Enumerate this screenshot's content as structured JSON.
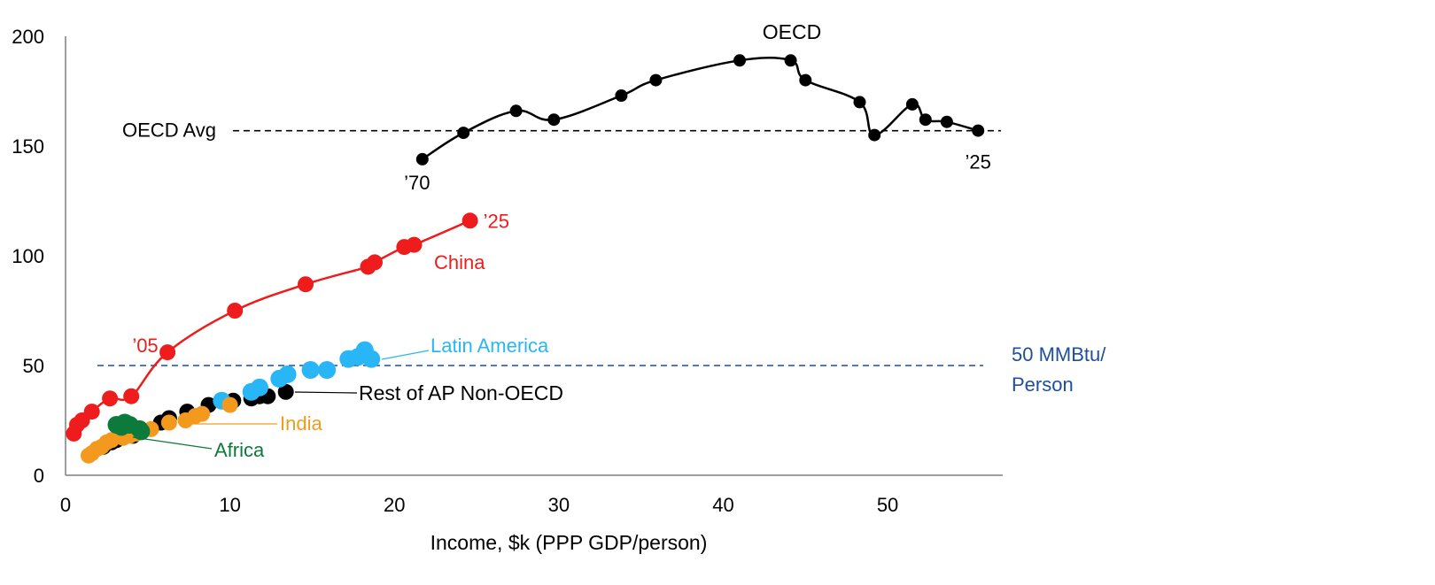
{
  "chart_data": {
    "type": "scatter",
    "title": "",
    "xlabel": "Income, $k (PPP GDP/person)",
    "ylabel": "",
    "xlim": [
      0,
      57
    ],
    "ylim": [
      0,
      200
    ],
    "x_ticks": [
      "0",
      "10",
      "20",
      "30",
      "40",
      "50"
    ],
    "y_ticks": [
      "0",
      "50",
      "100",
      "150",
      "200"
    ],
    "reference_lines": [
      {
        "label": "OECD Avg",
        "y": 157,
        "color": "#000000"
      },
      {
        "label_line1": "50 MMBtu/",
        "label_line2": "Person",
        "y": 50,
        "color": "#1f4e9c"
      }
    ],
    "series": [
      {
        "name": "OECD",
        "color": "#000000",
        "points": [
          [
            21.7,
            144
          ],
          [
            24.2,
            156
          ],
          [
            27.4,
            166
          ],
          [
            29.7,
            162
          ],
          [
            33.8,
            173
          ],
          [
            35.9,
            180
          ],
          [
            41.0,
            189
          ],
          [
            44.1,
            189
          ],
          [
            45.0,
            180
          ],
          [
            48.3,
            170
          ],
          [
            49.2,
            155
          ],
          [
            51.5,
            169
          ],
          [
            52.3,
            162
          ],
          [
            53.6,
            161
          ],
          [
            55.5,
            157
          ]
        ],
        "start_label": "’70",
        "end_label": "’25"
      },
      {
        "name": "China",
        "color": "#ee1c1c",
        "points": [
          [
            0.5,
            19
          ],
          [
            0.7,
            23
          ],
          [
            1.0,
            25
          ],
          [
            1.6,
            29
          ],
          [
            2.7,
            35
          ],
          [
            4.0,
            36
          ],
          [
            6.2,
            56
          ],
          [
            10.3,
            75
          ],
          [
            14.6,
            87
          ],
          [
            18.4,
            95
          ],
          [
            18.8,
            97
          ],
          [
            20.6,
            104
          ],
          [
            21.2,
            105
          ],
          [
            24.6,
            116
          ]
        ],
        "start_label": "’05",
        "end_label": "’25"
      },
      {
        "name": "Latin America",
        "color": "#29b6f6",
        "points": [
          [
            9.5,
            34
          ],
          [
            11.3,
            38
          ],
          [
            11.8,
            40
          ],
          [
            13.0,
            44
          ],
          [
            13.5,
            46
          ],
          [
            14.9,
            48
          ],
          [
            15.9,
            48
          ],
          [
            17.2,
            53
          ],
          [
            17.8,
            54
          ],
          [
            18.2,
            57
          ],
          [
            18.6,
            53
          ]
        ]
      },
      {
        "name": "Rest of AP Non-OECD",
        "color": "#000000",
        "points": [
          [
            2.3,
            13
          ],
          [
            2.8,
            15
          ],
          [
            3.1,
            16
          ],
          [
            4.1,
            18
          ],
          [
            5.8,
            24
          ],
          [
            6.3,
            26
          ],
          [
            7.4,
            29
          ],
          [
            8.7,
            32
          ],
          [
            10.2,
            34
          ],
          [
            11.3,
            35
          ],
          [
            11.8,
            36
          ],
          [
            12.3,
            36
          ],
          [
            13.4,
            38
          ]
        ]
      },
      {
        "name": "India",
        "color": "#f39a1e",
        "points": [
          [
            1.4,
            9
          ],
          [
            1.6,
            10
          ],
          [
            1.9,
            12
          ],
          [
            2.2,
            13
          ],
          [
            2.5,
            15
          ],
          [
            2.8,
            16
          ],
          [
            3.5,
            17
          ],
          [
            3.9,
            18
          ],
          [
            4.3,
            19
          ],
          [
            5.2,
            21
          ],
          [
            6.3,
            24
          ],
          [
            7.3,
            25
          ],
          [
            7.9,
            27
          ],
          [
            8.3,
            28
          ],
          [
            10.0,
            32
          ]
        ]
      },
      {
        "name": "Africa",
        "color": "#0c7a3a",
        "points": [
          [
            3.1,
            23
          ],
          [
            3.4,
            22
          ],
          [
            3.6,
            24
          ],
          [
            3.9,
            23
          ],
          [
            4.5,
            21
          ],
          [
            4.6,
            20
          ]
        ]
      }
    ],
    "series_labels": [
      "OECD",
      "China",
      "Latin America",
      "Rest of AP Non-OECD",
      "India",
      "Africa"
    ]
  }
}
